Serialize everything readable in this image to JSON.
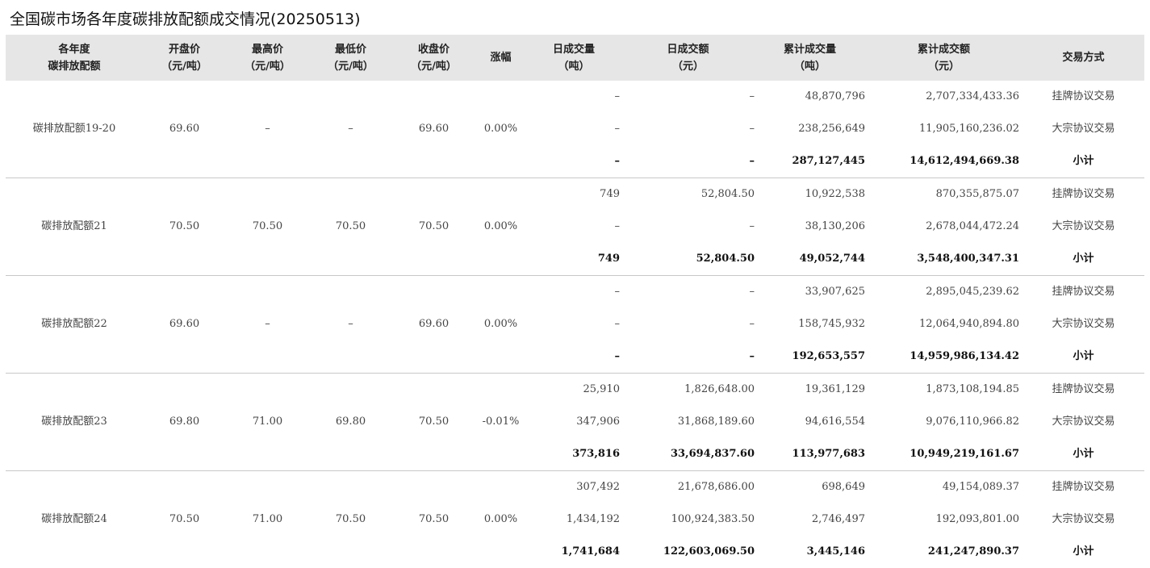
{
  "title": "全国碳市场各年度碳排放配额成交情况(20250513)",
  "headers": [
    {
      "l1": "各年度",
      "l2": "碳排放配额"
    },
    {
      "l1": "开盘价",
      "l2": "（元/吨）"
    },
    {
      "l1": "最高价",
      "l2": "（元/吨）"
    },
    {
      "l1": "最低价",
      "l2": "（元/吨）"
    },
    {
      "l1": "收盘价",
      "l2": "（元/吨）"
    },
    {
      "l1": "涨幅",
      "l2": ""
    },
    {
      "l1": "日成交量",
      "l2": "（吨）"
    },
    {
      "l1": "日成交额",
      "l2": "（元）"
    },
    {
      "l1": "累计成交量",
      "l2": "（吨）"
    },
    {
      "l1": "累计成交额",
      "l2": "（元）"
    },
    {
      "l1": "交易方式",
      "l2": ""
    }
  ],
  "groups": [
    {
      "name": "碳排放配额19-20",
      "open": "69.60",
      "high": "–",
      "low": "–",
      "close": "69.60",
      "change": "0.00%",
      "rows": [
        {
          "vol": "–",
          "amt": "–",
          "cum_vol": "48,870,796",
          "cum_amt": "2,707,334,433.36",
          "method": "挂牌协议交易"
        },
        {
          "vol": "–",
          "amt": "–",
          "cum_vol": "238,256,649",
          "cum_amt": "11,905,160,236.02",
          "method": "大宗协议交易"
        },
        {
          "vol": "–",
          "amt": "–",
          "cum_vol": "287,127,445",
          "cum_amt": "14,612,494,669.38",
          "method": "小计"
        }
      ]
    },
    {
      "name": "碳排放配额21",
      "open": "70.50",
      "high": "70.50",
      "low": "70.50",
      "close": "70.50",
      "change": "0.00%",
      "rows": [
        {
          "vol": "749",
          "amt": "52,804.50",
          "cum_vol": "10,922,538",
          "cum_amt": "870,355,875.07",
          "method": "挂牌协议交易"
        },
        {
          "vol": "–",
          "amt": "–",
          "cum_vol": "38,130,206",
          "cum_amt": "2,678,044,472.24",
          "method": "大宗协议交易"
        },
        {
          "vol": "749",
          "amt": "52,804.50",
          "cum_vol": "49,052,744",
          "cum_amt": "3,548,400,347.31",
          "method": "小计"
        }
      ]
    },
    {
      "name": "碳排放配额22",
      "open": "69.60",
      "high": "–",
      "low": "–",
      "close": "69.60",
      "change": "0.00%",
      "rows": [
        {
          "vol": "–",
          "amt": "–",
          "cum_vol": "33,907,625",
          "cum_amt": "2,895,045,239.62",
          "method": "挂牌协议交易"
        },
        {
          "vol": "–",
          "amt": "–",
          "cum_vol": "158,745,932",
          "cum_amt": "12,064,940,894.80",
          "method": "大宗协议交易"
        },
        {
          "vol": "–",
          "amt": "–",
          "cum_vol": "192,653,557",
          "cum_amt": "14,959,986,134.42",
          "method": "小计"
        }
      ]
    },
    {
      "name": "碳排放配额23",
      "open": "69.80",
      "high": "71.00",
      "low": "69.80",
      "close": "70.50",
      "change": "-0.01%",
      "rows": [
        {
          "vol": "25,910",
          "amt": "1,826,648.00",
          "cum_vol": "19,361,129",
          "cum_amt": "1,873,108,194.85",
          "method": "挂牌协议交易"
        },
        {
          "vol": "347,906",
          "amt": "31,868,189.60",
          "cum_vol": "94,616,554",
          "cum_amt": "9,076,110,966.82",
          "method": "大宗协议交易"
        },
        {
          "vol": "373,816",
          "amt": "33,694,837.60",
          "cum_vol": "113,977,683",
          "cum_amt": "10,949,219,161.67",
          "method": "小计"
        }
      ]
    },
    {
      "name": "碳排放配额24",
      "open": "70.50",
      "high": "71.00",
      "low": "70.50",
      "close": "70.50",
      "change": "0.00%",
      "rows": [
        {
          "vol": "307,492",
          "amt": "21,678,686.00",
          "cum_vol": "698,649",
          "cum_amt": "49,154,089.37",
          "method": "挂牌协议交易"
        },
        {
          "vol": "1,434,192",
          "amt": "100,924,383.50",
          "cum_vol": "2,746,497",
          "cum_amt": "192,093,801.00",
          "method": "大宗协议交易"
        },
        {
          "vol": "1,741,684",
          "amt": "122,603,069.50",
          "cum_vol": "3,445,146",
          "cum_amt": "241,247,890.37",
          "method": "小计"
        }
      ]
    }
  ]
}
